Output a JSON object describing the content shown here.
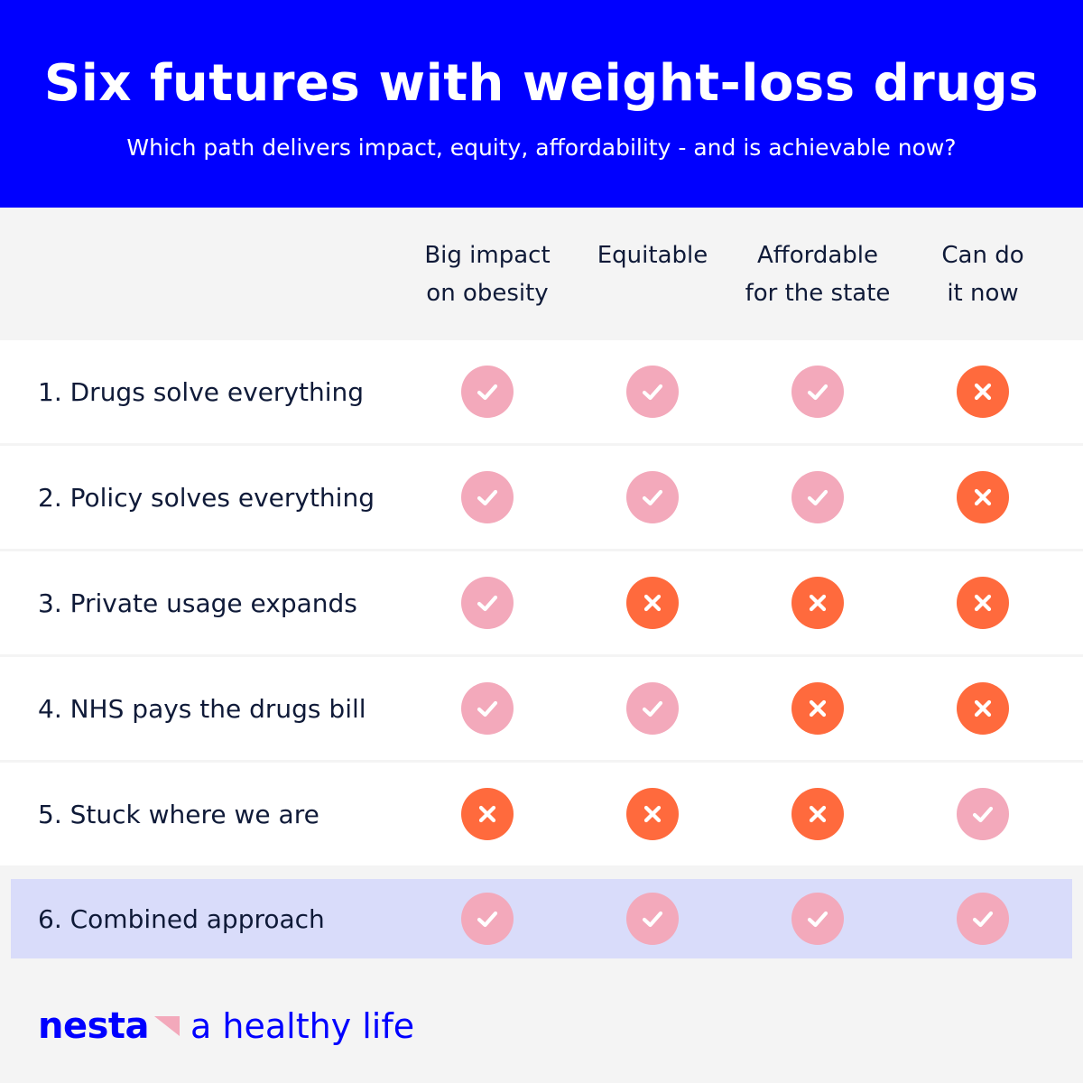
{
  "header": {
    "title": "Six futures with weight-loss drugs",
    "subtitle": "Which path delivers impact, equity, affordability - and is achievable now?"
  },
  "columns": [
    {
      "label": "Big impact\non obesity"
    },
    {
      "label": "Equitable"
    },
    {
      "label": "Affordable\nfor the state"
    },
    {
      "label": "Can do\nit now"
    }
  ],
  "rows": [
    {
      "label": "1.  Drugs solve everything",
      "values": [
        "yes",
        "yes",
        "yes",
        "no"
      ],
      "highlight": false
    },
    {
      "label": "2.  Policy solves everything",
      "values": [
        "yes",
        "yes",
        "yes",
        "no"
      ],
      "highlight": false
    },
    {
      "label": "3.  Private usage expands",
      "values": [
        "yes",
        "no",
        "no",
        "no"
      ],
      "highlight": false
    },
    {
      "label": "4.  NHS pays the drugs bill",
      "values": [
        "yes",
        "yes",
        "no",
        "no"
      ],
      "highlight": false
    },
    {
      "label": "5.  Stuck where we are",
      "values": [
        "no",
        "no",
        "no",
        "yes"
      ],
      "highlight": false
    },
    {
      "label": "6.  Combined approach",
      "values": [
        "yes",
        "yes",
        "yes",
        "yes"
      ],
      "highlight": true
    }
  ],
  "icons": {
    "yes": "check-icon",
    "no": "cross-icon"
  },
  "colors": {
    "header_bg": "#0000ff",
    "check_bg": "#f3a9bb",
    "cross_bg": "#ff6a3d",
    "highlight_row": "#d9dcfa",
    "brand": "#0000ff"
  },
  "footer": {
    "logo": "nesta",
    "tagline": "a healthy life"
  }
}
